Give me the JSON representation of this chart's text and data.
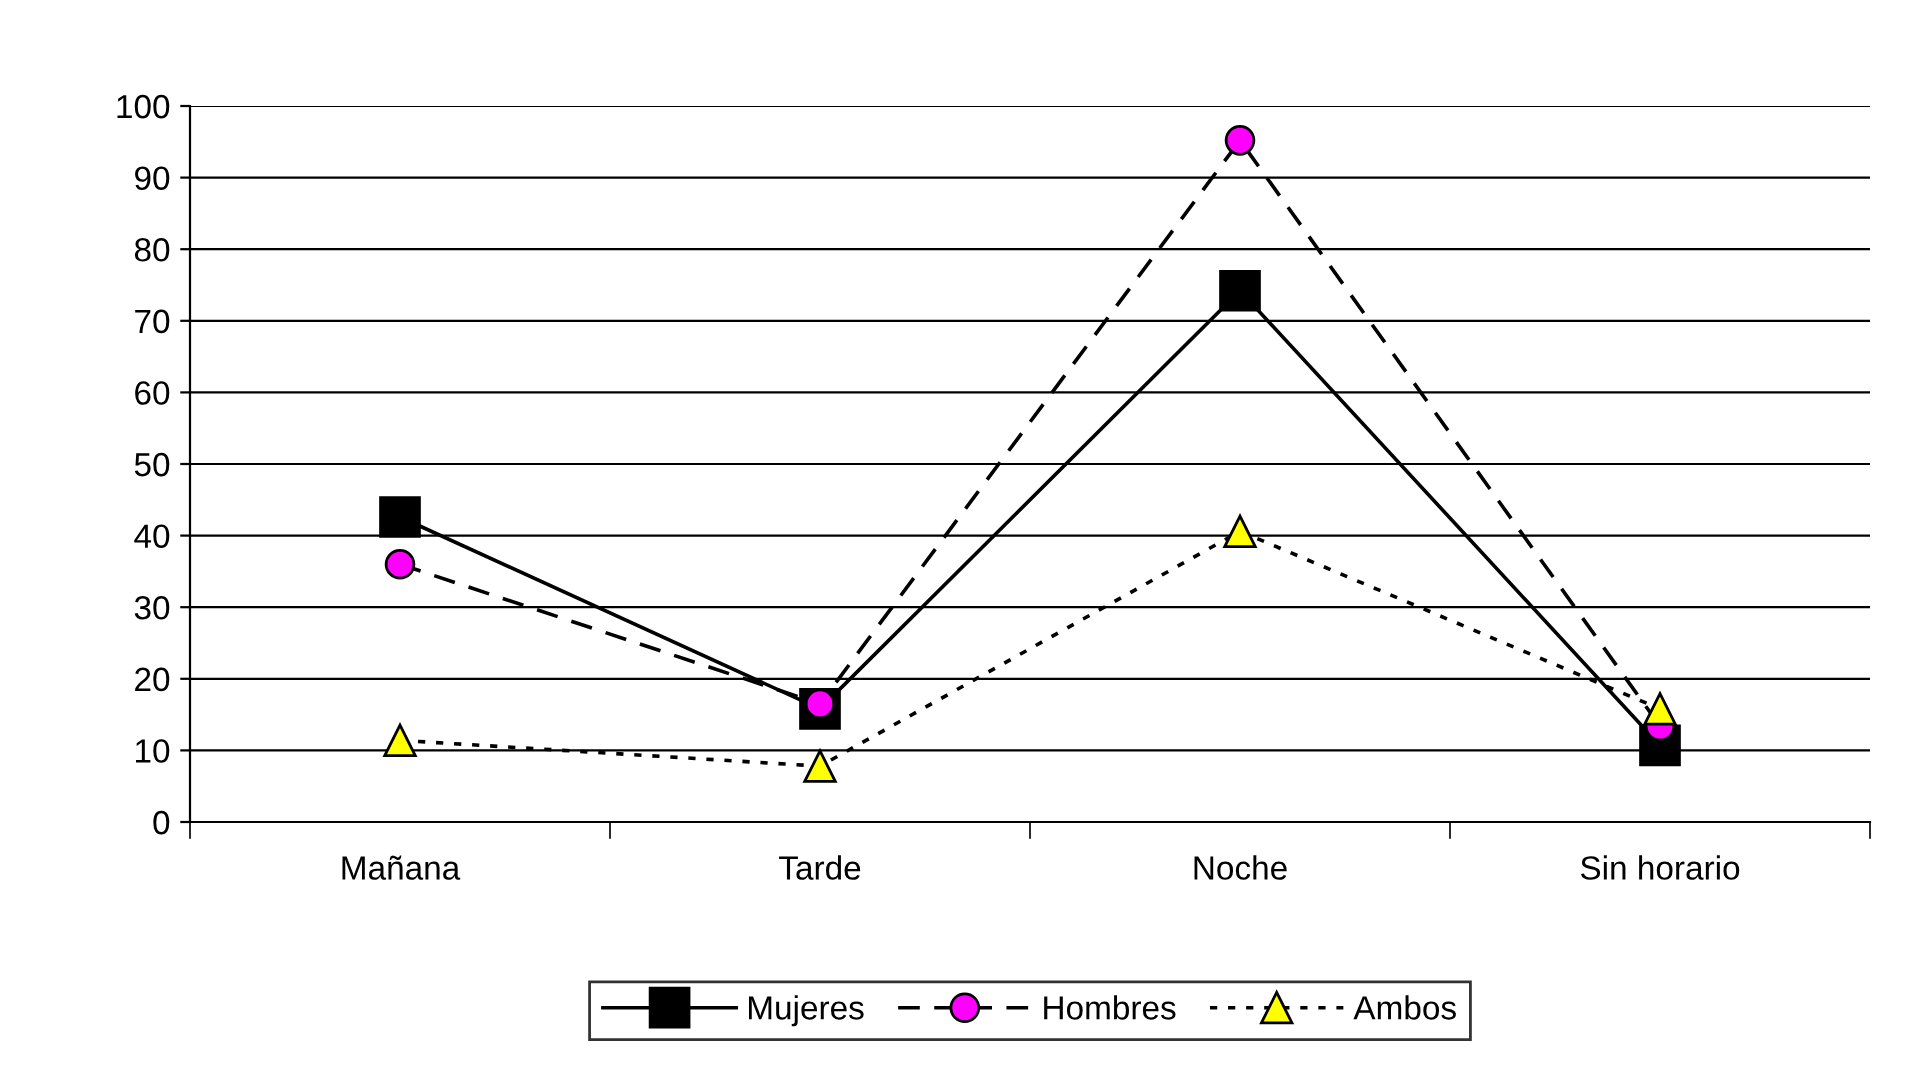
{
  "chart_data": {
    "type": "line",
    "categories": [
      "Mañana",
      "Tarde",
      "Noche",
      "Sin horario"
    ],
    "series": [
      {
        "name": "Mujeres",
        "color": "#000000",
        "marker": "square",
        "line_style": "solid",
        "values": [
          42.6,
          15.8,
          74.2,
          10.7
        ]
      },
      {
        "name": "Hombres",
        "color": "#ff00ff",
        "marker": "circle",
        "line_style": "dashed",
        "values": [
          36,
          16.5,
          95.2,
          13.4
        ]
      },
      {
        "name": "Ambos",
        "color": "#ffff00",
        "marker": "triangle",
        "line_style": "dotted",
        "values": [
          11.4,
          7.8,
          40.6,
          15.8
        ]
      }
    ],
    "ylim": [
      0,
      100
    ],
    "yticks": [
      0,
      10,
      20,
      30,
      40,
      50,
      60,
      70,
      80,
      90,
      100
    ],
    "grid": "y",
    "legend": "bottom"
  }
}
